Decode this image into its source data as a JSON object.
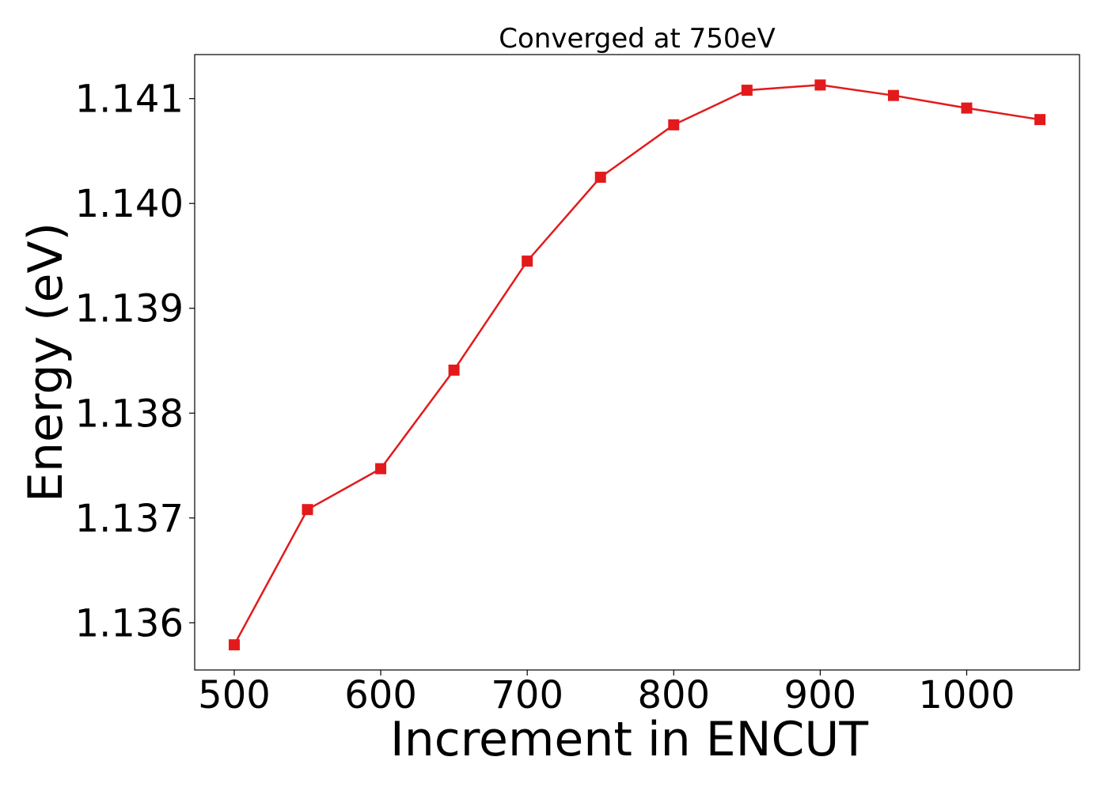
{
  "chart_data": {
    "type": "line",
    "title": "Converged at 750eV",
    "xlabel": "Increment in ENCUT",
    "ylabel": "Energy (eV)",
    "xlim": [
      473,
      1077
    ],
    "ylim": [
      1.13555,
      1.14142
    ],
    "xticks": [
      500,
      600,
      700,
      800,
      900,
      1000
    ],
    "xtick_labels": [
      "500",
      "600",
      "700",
      "800",
      "900",
      "1000"
    ],
    "yticks": [
      1.136,
      1.137,
      1.138,
      1.139,
      1.14,
      1.141
    ],
    "ytick_labels": [
      "1.136",
      "1.137",
      "1.138",
      "1.139",
      "1.140",
      "1.141"
    ],
    "grid": false,
    "legend": "none",
    "series": [
      {
        "color": "#e31a1c",
        "marker": "square",
        "x": [
          500,
          550,
          600,
          650,
          700,
          750,
          800,
          850,
          900,
          950,
          1000,
          1050
        ],
        "y": [
          1.13579,
          1.13708,
          1.13747,
          1.13841,
          1.13945,
          1.14025,
          1.14075,
          1.14108,
          1.14113,
          1.14103,
          1.14091,
          1.1408
        ]
      }
    ]
  }
}
